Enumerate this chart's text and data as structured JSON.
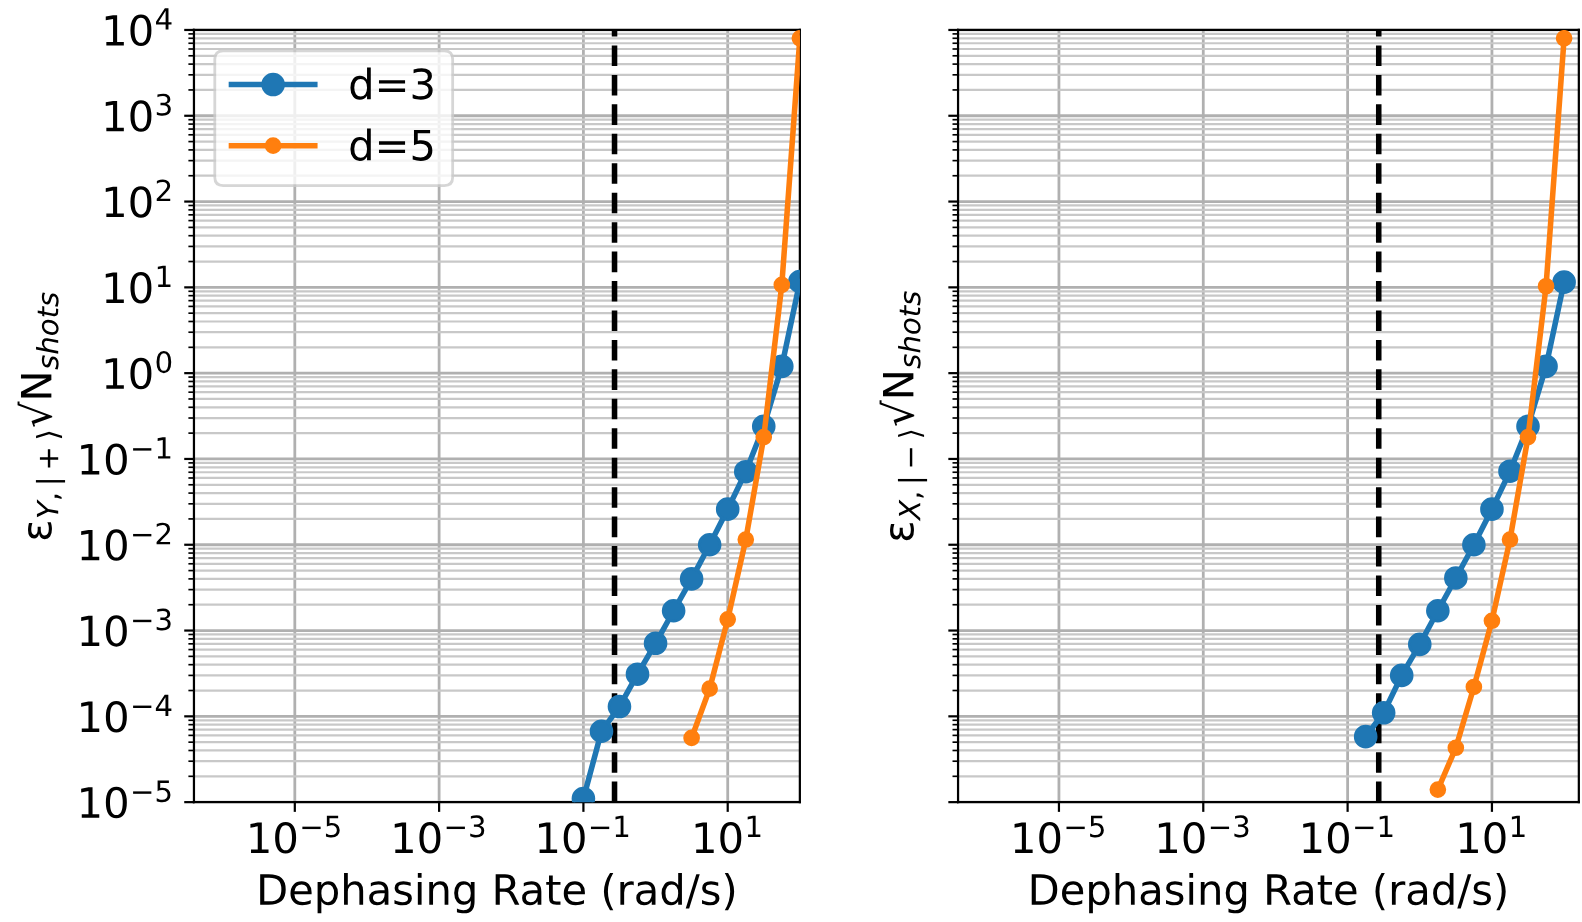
{
  "chart_data": [
    {
      "type": "line",
      "xlabel": "Dephasing Rate (rad/s)",
      "ylabel": "ε$_{Y,|+⟩}$√N$_{shots}$",
      "log": "xy",
      "grid": true,
      "marker": "circle",
      "line_style": "solid",
      "legend": "top left",
      "xlim": [
        4e-07,
        100
      ],
      "ylim": [
        1e-05,
        10000
      ],
      "xticks": [
        {
          "value": 1e-05,
          "label": "10$^{−5}$"
        },
        {
          "value": 0.001,
          "label": "10$^{−3}$"
        },
        {
          "value": 0.1,
          "label": "10$^{−1}$"
        },
        {
          "value": 10,
          "label": "10$^{1}$"
        }
      ],
      "yticks": [
        {
          "value": 1e-05,
          "label": "10$^{−5}$"
        },
        {
          "value": 0.0001,
          "label": "10$^{−4}$"
        },
        {
          "value": 0.001,
          "label": "10$^{−3}$"
        },
        {
          "value": 0.01,
          "label": "10$^{−2}$"
        },
        {
          "value": 0.1,
          "label": "10$^{−1}$"
        },
        {
          "value": 1,
          "label": "10$^{0}$"
        },
        {
          "value": 10,
          "label": "10$^{1}$"
        },
        {
          "value": 100,
          "label": "10$^{2}$"
        },
        {
          "value": 1000,
          "label": "10$^{3}$"
        },
        {
          "value": 10000,
          "label": "10$^{4}$"
        }
      ],
      "ref_lines": [
        {
          "axis": "x",
          "value": 0.27,
          "color": "#000000",
          "line_style": "dashed"
        }
      ],
      "series": [
        {
          "name": "d=3",
          "color": "#1f77b4",
          "x": [
            0.1,
            0.178,
            0.316,
            0.562,
            1,
            1.78,
            3.16,
            5.62,
            10,
            17.8,
            31.6,
            56.2,
            100
          ],
          "values": [
            1.1e-05,
            6.7e-05,
            0.00013,
            0.00031,
            0.00071,
            0.0017,
            0.004,
            0.01,
            0.026,
            0.071,
            0.24,
            1.2,
            11.7
          ]
        },
        {
          "name": "d=5",
          "color": "#ff7f0e",
          "x": [
            3.16,
            5.62,
            10,
            17.8,
            31.6,
            56.2,
            100
          ],
          "values": [
            5.6e-05,
            0.00021,
            0.00135,
            0.0115,
            0.18,
            10.7,
            8000
          ]
        }
      ]
    },
    {
      "type": "line",
      "xlabel": "Dephasing Rate (rad/s)",
      "ylabel": "ε$_{X,|−⟩}$√N$_{shots}$",
      "log": "xy",
      "grid": true,
      "marker": "circle",
      "line_style": "solid",
      "tick_labels": "x",
      "xlim": [
        4e-07,
        160
      ],
      "ylim": [
        1e-05,
        10000
      ],
      "xticks": [
        {
          "value": 1e-05,
          "label": "10$^{−5}$"
        },
        {
          "value": 0.001,
          "label": "10$^{−3}$"
        },
        {
          "value": 0.1,
          "label": "10$^{−1}$"
        },
        {
          "value": 10,
          "label": "10$^{1}$"
        }
      ],
      "yticks": [
        {
          "value": 1e-05,
          "label": null
        },
        {
          "value": 0.0001,
          "label": null
        },
        {
          "value": 0.001,
          "label": null
        },
        {
          "value": 0.01,
          "label": null
        },
        {
          "value": 0.1,
          "label": null
        },
        {
          "value": 1,
          "label": null
        },
        {
          "value": 10,
          "label": null
        },
        {
          "value": 100,
          "label": null
        },
        {
          "value": 1000,
          "label": null
        },
        {
          "value": 10000,
          "label": null
        }
      ],
      "ref_lines": [
        {
          "axis": "x",
          "value": 0.27,
          "color": "#000000",
          "line_style": "dashed"
        }
      ],
      "series": [
        {
          "color": "#1f77b4",
          "x": [
            0.178,
            0.316,
            0.562,
            1,
            1.78,
            3.16,
            5.62,
            10,
            17.8,
            31.6,
            56.2,
            100
          ],
          "values": [
            5.8e-05,
            0.00011,
            0.0003,
            0.00069,
            0.0017,
            0.0041,
            0.01,
            0.026,
            0.072,
            0.24,
            1.2,
            11.5
          ]
        },
        {
          "color": "#ff7f0e",
          "x": [
            1.78,
            3.16,
            5.62,
            10,
            17.8,
            31.6,
            56.2,
            100
          ],
          "values": [
            1.4e-05,
            4.3e-05,
            0.00022,
            0.0013,
            0.0115,
            0.18,
            10.3,
            8000
          ]
        }
      ]
    }
  ]
}
